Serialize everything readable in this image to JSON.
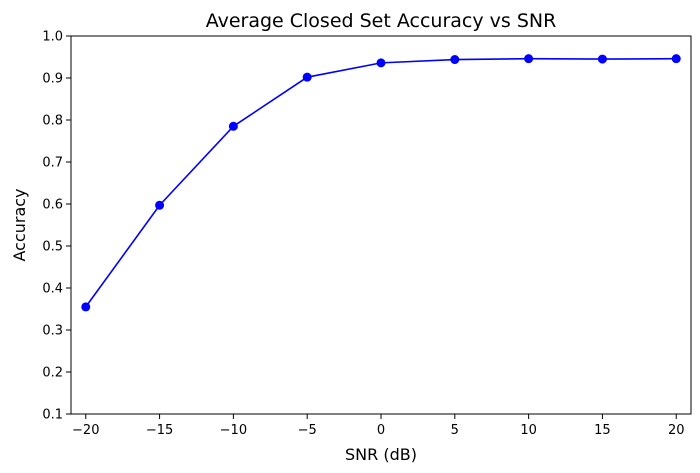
{
  "chart_data": {
    "type": "line",
    "title": "Average Closed Set Accuracy vs SNR",
    "xlabel": "SNR (dB)",
    "ylabel": "Accuracy",
    "x": [
      -20,
      -15,
      -10,
      -5,
      0,
      5,
      10,
      15,
      20
    ],
    "series": [
      {
        "values": [
          0.355,
          0.597,
          0.785,
          0.902,
          0.936,
          0.944,
          0.946,
          0.945,
          0.946
        ],
        "color": "#0000ff",
        "marker": "circle"
      }
    ],
    "xlim": [
      -21,
      21
    ],
    "ylim": [
      0.1,
      1.0
    ],
    "xticks": [
      -20,
      -15,
      -10,
      -5,
      0,
      5,
      10,
      15,
      20
    ],
    "xtick_labels": [
      "−20",
      "−15",
      "−10",
      "−5",
      "0",
      "5",
      "10",
      "15",
      "20"
    ],
    "yticks": [
      0.1,
      0.2,
      0.3,
      0.4,
      0.5,
      0.6,
      0.7,
      0.8,
      0.9,
      1.0
    ],
    "ytick_labels": [
      "0.1",
      "0.2",
      "0.3",
      "0.4",
      "0.5",
      "0.6",
      "0.7",
      "0.8",
      "0.9",
      "1.0"
    ],
    "grid": false,
    "legend": false
  }
}
